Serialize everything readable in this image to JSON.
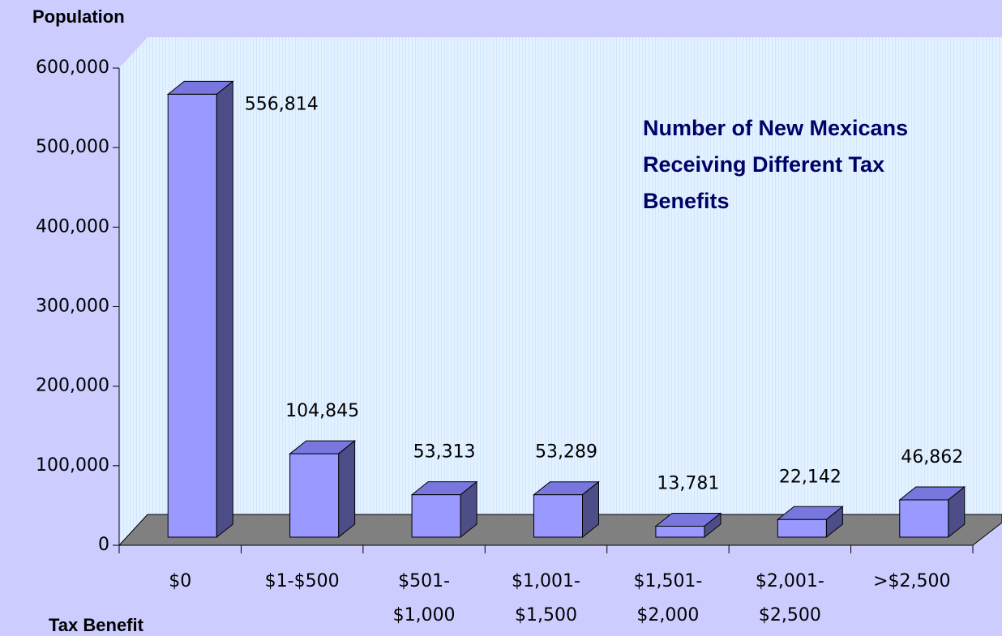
{
  "chart_data": {
    "type": "bar3d",
    "title": [
      "Number of New Mexicans",
      "Receiving Different Tax",
      "Benefits"
    ],
    "y_label": "Population",
    "x_label": "Tax Benefit",
    "categories": [
      [
        "$0"
      ],
      [
        "$1-$500"
      ],
      [
        "$501-",
        "$1,000"
      ],
      [
        "$1,001-",
        "$1,500"
      ],
      [
        "$1,501-",
        "$2,000"
      ],
      [
        "$2,001-",
        "$2,500"
      ],
      [
        ">$2,500"
      ]
    ],
    "values": [
      556814,
      104845,
      53313,
      53289,
      13781,
      22142,
      46862
    ],
    "value_labels": [
      "556,814",
      "104,845",
      "53,313",
      "53,289",
      "13,781",
      "22,142",
      "46,862"
    ],
    "color": "#9999ff",
    "ylim": [
      0,
      600000
    ],
    "yticks": [
      0,
      {
        "value": 100000,
        "label": "100,000"
      },
      {
        "value": 200000,
        "label": "200,000"
      },
      {
        "value": 300000,
        "label": "300,000"
      },
      {
        "value": 400000,
        "label": "400,000"
      },
      {
        "value": 500000,
        "label": "500,000"
      },
      {
        "value": 600000,
        "label": "600,000"
      }
    ]
  }
}
